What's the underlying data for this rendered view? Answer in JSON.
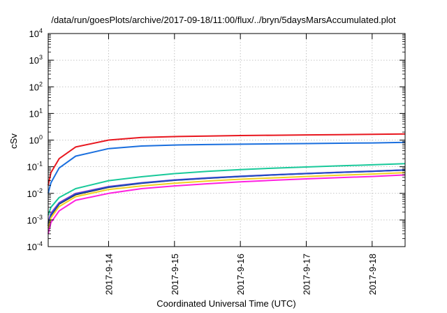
{
  "chart_data": {
    "type": "line",
    "title": "/data/run/goesPlots/archive/2017-09-18/11:00/flux/../bryn/5daysMarsAccumulated.plot",
    "xlabel": "Coordinated Universal Time (UTC)",
    "ylabel": "cSv",
    "y_scale": "log",
    "ylim": [
      0.0001,
      10000
    ],
    "xlim": [
      "2017-09-13 02:00",
      "2017-09-18 12:00"
    ],
    "y_ticks": [
      {
        "base": "10",
        "exp": "-4"
      },
      {
        "base": "10",
        "exp": "-3"
      },
      {
        "base": "10",
        "exp": "-2"
      },
      {
        "base": "10",
        "exp": "-1"
      },
      {
        "base": "10",
        "exp": "0"
      },
      {
        "base": "10",
        "exp": "1"
      },
      {
        "base": "10",
        "exp": "2"
      },
      {
        "base": "10",
        "exp": "3"
      },
      {
        "base": "10",
        "exp": "4"
      }
    ],
    "x_ticks": [
      "2017-9-14",
      "2017-9-15",
      "2017-9-16",
      "2017-9-17",
      "2017-9-18"
    ],
    "grid": true,
    "legend": "none",
    "x": [
      "2017-09-13 02:00",
      "2017-09-13 03:00",
      "2017-09-13 06:00",
      "2017-09-13 12:00",
      "2017-09-14 00:00",
      "2017-09-14 12:00",
      "2017-09-15 00:00",
      "2017-09-15 12:00",
      "2017-09-16 00:00",
      "2017-09-16 12:00",
      "2017-09-17 00:00",
      "2017-09-17 12:00",
      "2017-09-18 00:00",
      "2017-09-18 12:00"
    ],
    "series": [
      {
        "color": "#e8171f",
        "values": [
          0.02,
          0.06,
          0.2,
          0.55,
          1.0,
          1.25,
          1.35,
          1.42,
          1.48,
          1.52,
          1.56,
          1.6,
          1.65,
          1.7
        ]
      },
      {
        "color": "#1a6fde",
        "values": [
          0.01,
          0.025,
          0.09,
          0.25,
          0.48,
          0.6,
          0.65,
          0.68,
          0.7,
          0.72,
          0.74,
          0.76,
          0.78,
          0.82
        ]
      },
      {
        "color": "#19c99a",
        "values": [
          0.0015,
          0.003,
          0.007,
          0.015,
          0.03,
          0.042,
          0.055,
          0.067,
          0.078,
          0.088,
          0.098,
          0.108,
          0.118,
          0.13
        ]
      },
      {
        "color": "#111111",
        "values": [
          0.0006,
          0.0015,
          0.004,
          0.009,
          0.017,
          0.024,
          0.031,
          0.037,
          0.043,
          0.049,
          0.055,
          0.061,
          0.067,
          0.075
        ]
      },
      {
        "color": "#c23ac8",
        "values": [
          0.0008,
          0.0018,
          0.0045,
          0.01,
          0.018,
          0.025,
          0.032,
          0.038,
          0.044,
          0.05,
          0.056,
          0.062,
          0.068,
          0.076
        ]
      },
      {
        "color": "#1f4fcc",
        "values": [
          0.0007,
          0.0016,
          0.0042,
          0.0095,
          0.0175,
          0.0245,
          0.0315,
          0.0375,
          0.0435,
          0.0495,
          0.0555,
          0.0615,
          0.0675,
          0.0755
        ]
      },
      {
        "color": "#f0d020",
        "values": [
          0.0005,
          0.0012,
          0.0032,
          0.0075,
          0.014,
          0.019,
          0.024,
          0.029,
          0.034,
          0.038,
          0.043,
          0.048,
          0.053,
          0.06
        ]
      },
      {
        "color": "#ff20e0",
        "values": [
          0.0003,
          0.0008,
          0.0022,
          0.0055,
          0.01,
          0.015,
          0.019,
          0.023,
          0.027,
          0.031,
          0.035,
          0.039,
          0.043,
          0.049
        ]
      }
    ]
  }
}
